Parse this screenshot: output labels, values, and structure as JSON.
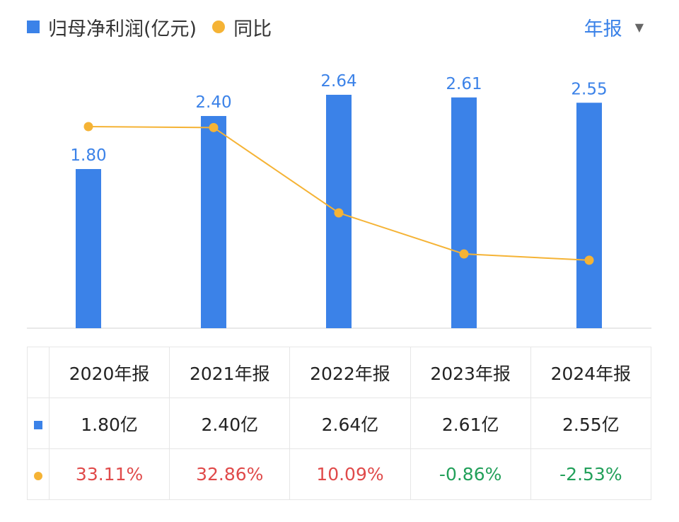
{
  "legend": {
    "bar_label": "归母净利润(亿元)",
    "line_label": "同比"
  },
  "period_selector": {
    "label": "年报",
    "caret": "▼"
  },
  "colors": {
    "bar": "#3b82e8",
    "line": "#f5b335",
    "positive": "#e04a4a",
    "negative": "#22a05a"
  },
  "chart_data": {
    "type": "bar",
    "categories": [
      "2020年报",
      "2021年报",
      "2022年报",
      "2023年报",
      "2024年报"
    ],
    "series": [
      {
        "name": "归母净利润(亿元)",
        "type": "bar",
        "values": [
          1.8,
          2.4,
          2.64,
          2.61,
          2.55
        ]
      },
      {
        "name": "同比",
        "type": "line",
        "values": [
          33.11,
          32.86,
          10.09,
          -0.86,
          -2.53
        ]
      }
    ],
    "bar_labels": [
      "1.80",
      "2.40",
      "2.64",
      "2.61",
      "2.55"
    ]
  },
  "table": {
    "headers": [
      "2020年报",
      "2021年报",
      "2022年报",
      "2023年报",
      "2024年报"
    ],
    "profit": [
      "1.80亿",
      "2.40亿",
      "2.64亿",
      "2.61亿",
      "2.55亿"
    ],
    "yoy": [
      "33.11%",
      "32.86%",
      "10.09%",
      "-0.86%",
      "-2.53%"
    ]
  }
}
